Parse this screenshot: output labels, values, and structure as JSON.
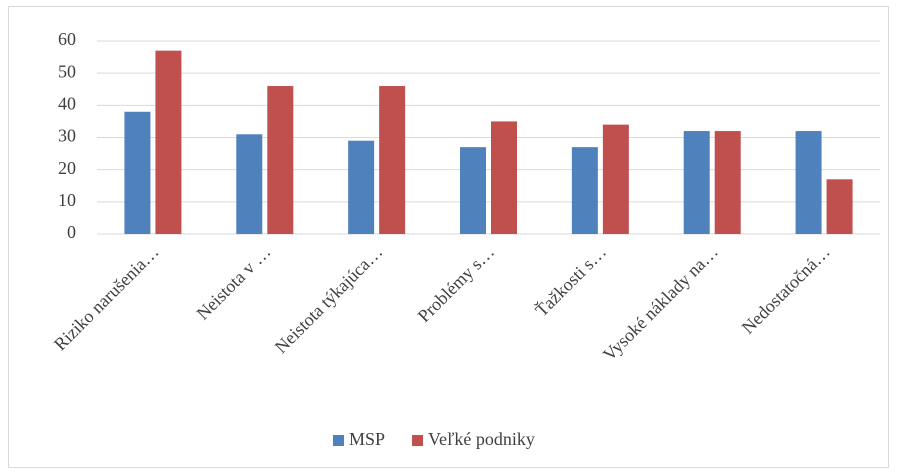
{
  "chart_data": {
    "type": "bar",
    "categories": [
      "Riziko narušenia…",
      "Neistota v …",
      "Neistota týkajúca…",
      "Problémy s…",
      "Ťažkosti s…",
      "Vysoké náklady na…",
      "Nedostatočná…"
    ],
    "series": [
      {
        "name": "MSP",
        "color": "#4f81bd",
        "values": [
          38,
          31,
          29,
          27,
          27,
          32,
          32
        ]
      },
      {
        "name": "Veľké podniky",
        "color": "#c0504d",
        "values": [
          57,
          46,
          46,
          35,
          34,
          32,
          17
        ]
      }
    ],
    "ylim": [
      0,
      60
    ],
    "yticks": [
      0,
      10,
      20,
      30,
      40,
      50,
      60
    ],
    "grid": true,
    "legend": "bottom"
  }
}
